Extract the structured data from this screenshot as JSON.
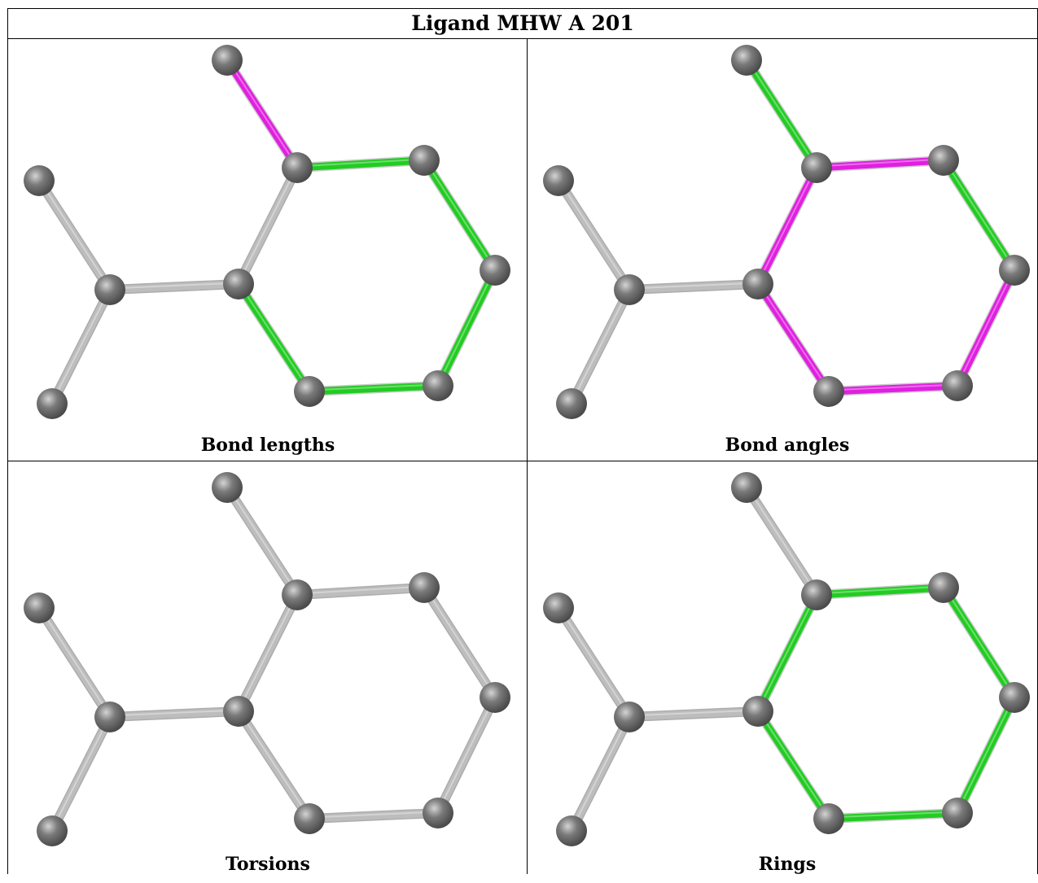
{
  "title": "Ligand MHW A 201",
  "colors": {
    "grey_bond": "#bdbdbd",
    "green_bond": "#22cc22",
    "magenta_bond": "#e020e0",
    "atom": "#7a7a7a"
  },
  "panels": [
    {
      "caption": "Bond lengths",
      "bond_colors": [
        "magenta",
        "green",
        "green",
        "green",
        "green",
        "green",
        "grey",
        "grey",
        "grey",
        "grey"
      ]
    },
    {
      "caption": "Bond angles",
      "bond_colors": [
        "green",
        "magenta",
        "green",
        "magenta",
        "magenta",
        "magenta",
        "magenta",
        "grey",
        "grey",
        "grey"
      ]
    },
    {
      "caption": "Torsions",
      "bond_colors": [
        "grey",
        "grey",
        "grey",
        "grey",
        "grey",
        "grey",
        "grey",
        "grey",
        "grey",
        "grey"
      ]
    },
    {
      "caption": "Rings",
      "bond_colors": [
        "grey",
        "green",
        "green",
        "green",
        "green",
        "green",
        "green",
        "grey",
        "grey",
        "grey"
      ]
    }
  ]
}
